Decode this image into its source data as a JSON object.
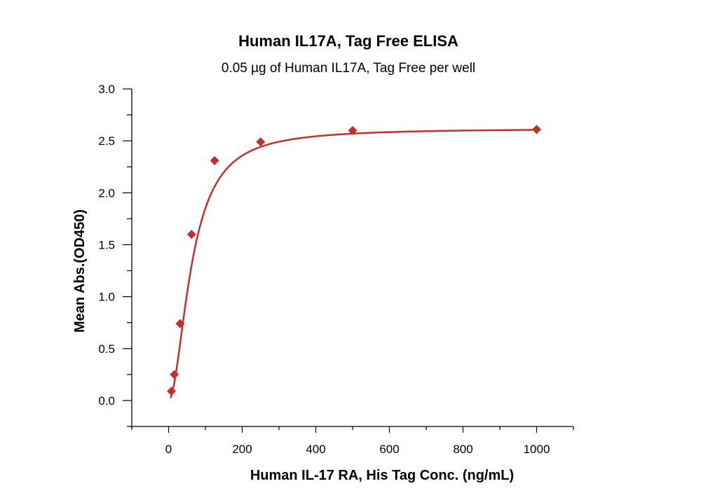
{
  "chart_data": {
    "type": "scatter",
    "title": "Human IL17A, Tag Free ELISA",
    "subtitle": "0.05 µg of Human IL17A, Tag Free per well",
    "xlabel": "Human IL-17 RA, His Tag Conc. (ng/mL)",
    "ylabel": "Mean Abs.(OD450)",
    "xlim": [
      -100,
      1100
    ],
    "ylim": [
      -0.25,
      3.0
    ],
    "x_ticks": [
      0,
      200,
      400,
      600,
      800,
      1000
    ],
    "x_tick_labels": [
      "0",
      "200",
      "400",
      "600",
      "800",
      "1000"
    ],
    "y_ticks": [
      0.0,
      0.5,
      1.0,
      1.5,
      2.0,
      2.5,
      3.0
    ],
    "y_tick_labels": [
      "0.0",
      "0.5",
      "1.0",
      "1.5",
      "2.0",
      "2.5",
      "3.0"
    ],
    "grid": false,
    "legend": "none",
    "series": [
      {
        "color": "#c0302c",
        "marker": "diamond",
        "x": [
          7.8,
          15.6,
          31.25,
          62.5,
          125,
          250,
          500,
          1000
        ],
        "y": [
          0.09,
          0.25,
          0.74,
          1.6,
          2.31,
          2.49,
          2.6,
          2.61
        ],
        "fit": "4PL"
      }
    ]
  }
}
